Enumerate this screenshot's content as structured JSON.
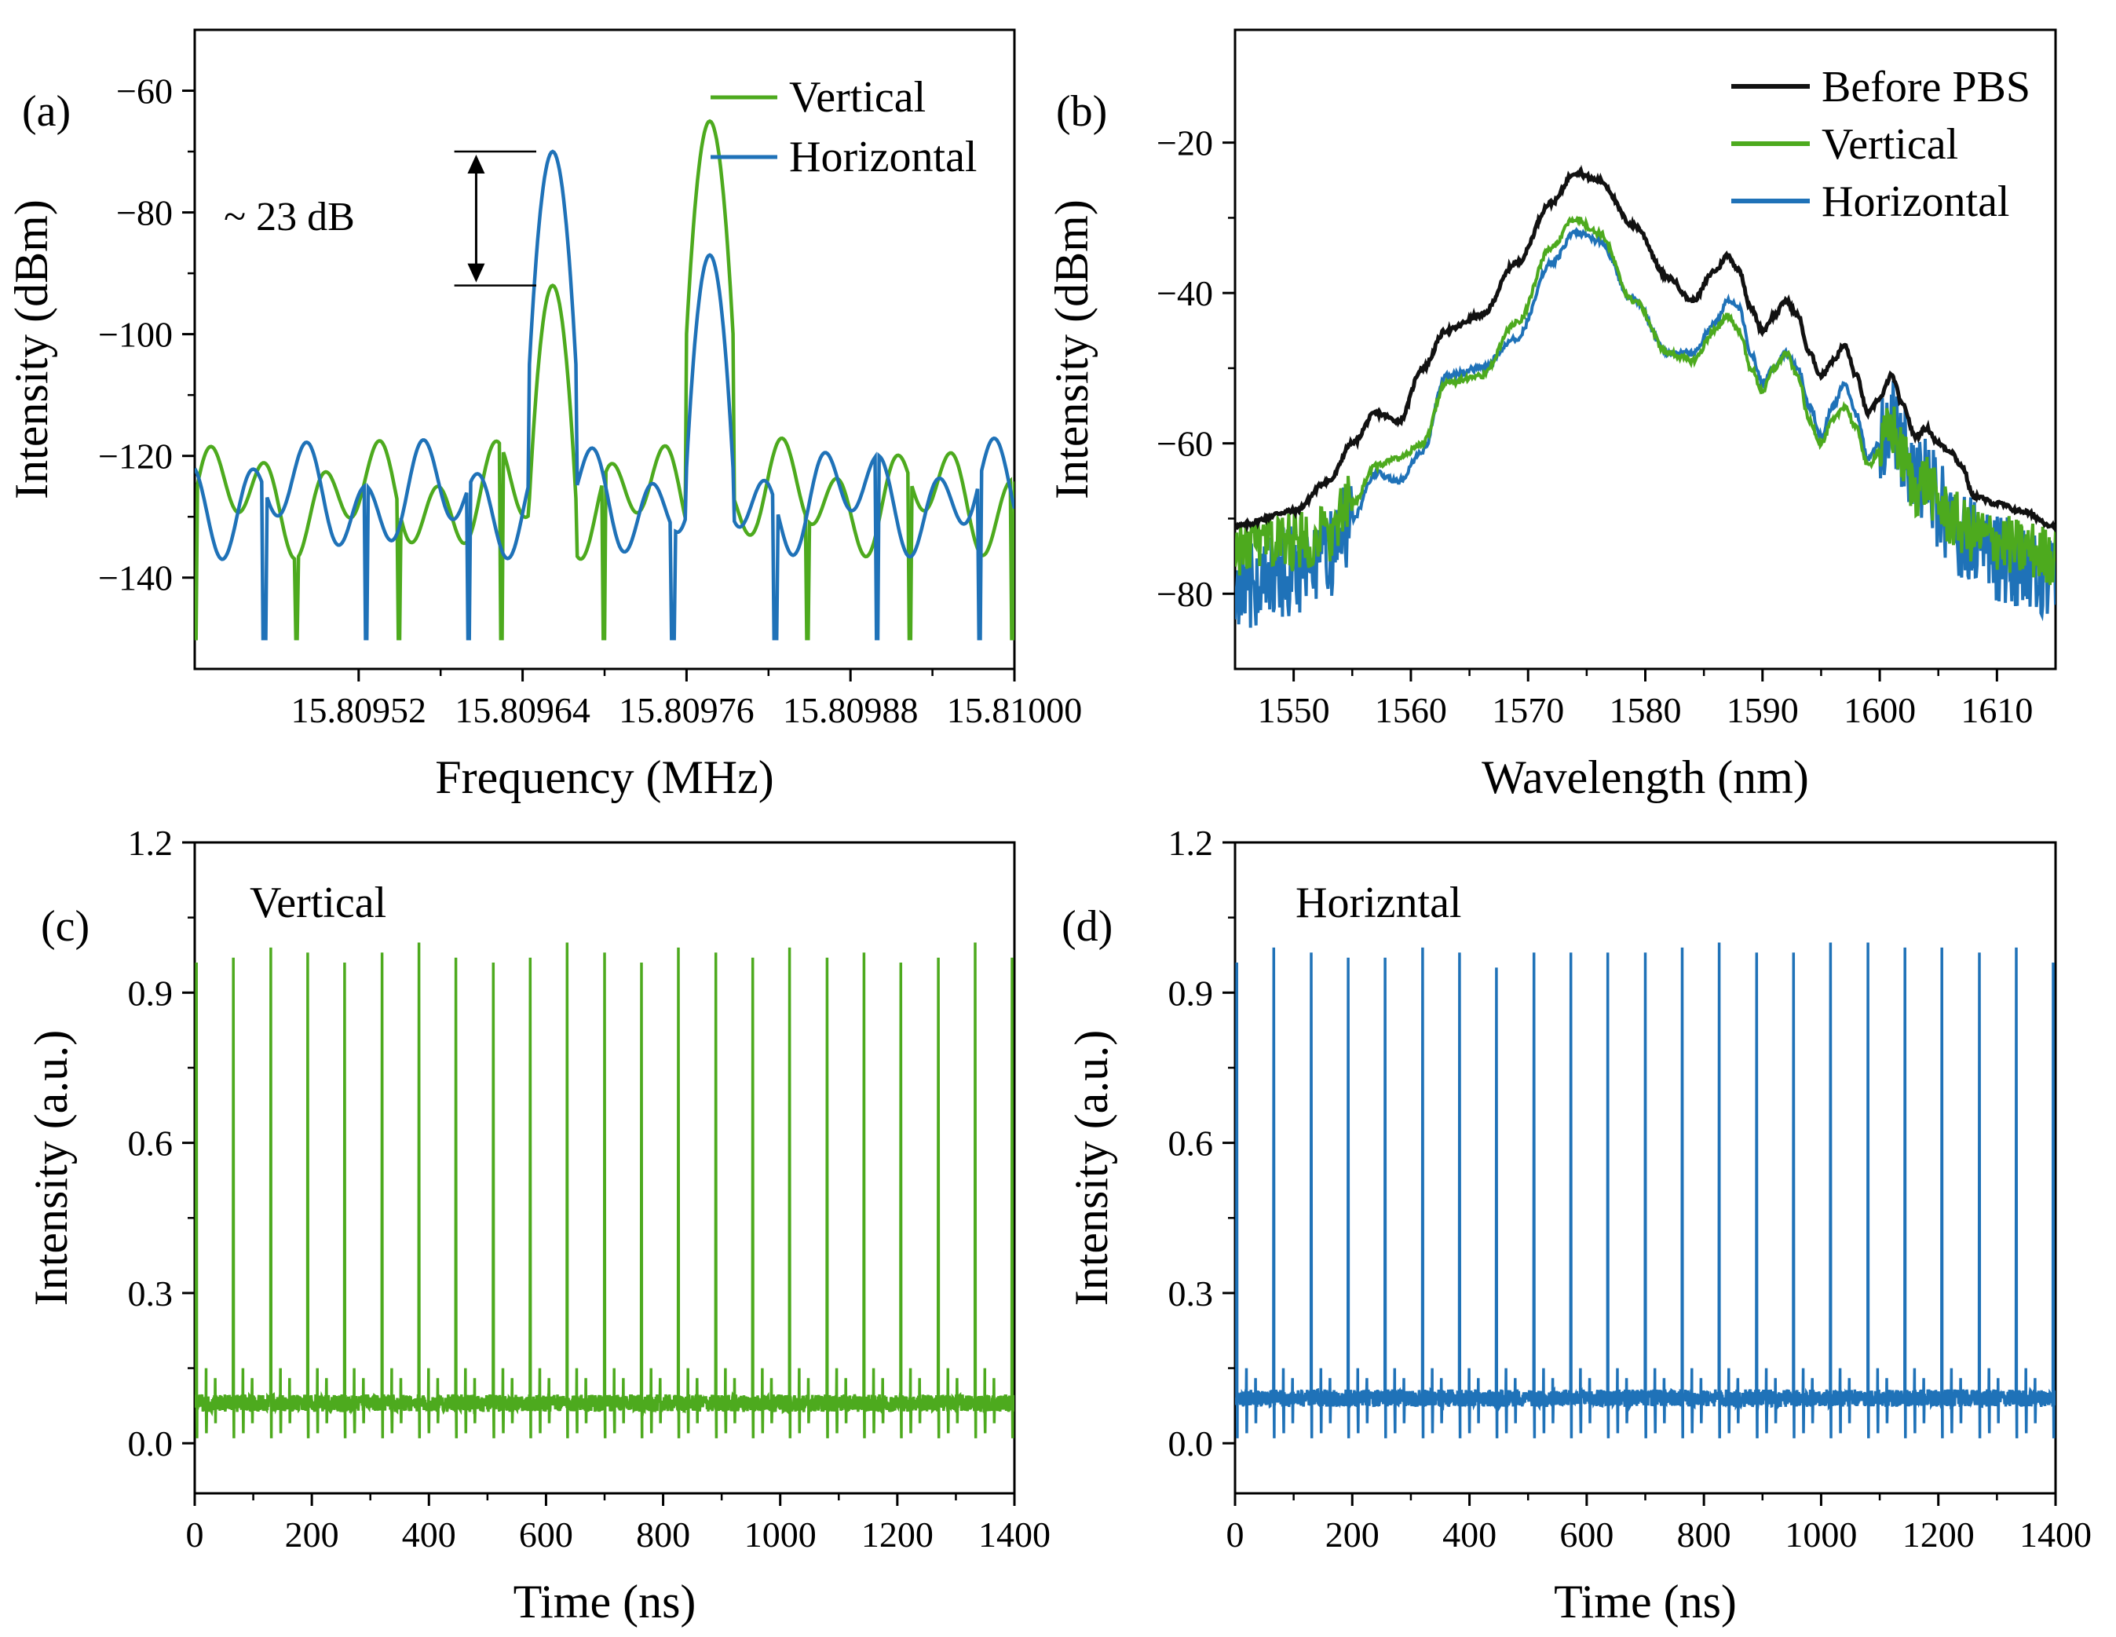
{
  "colors": {
    "vertical": "#4daa1e",
    "horizontal": "#1f72b8",
    "before_pbs": "#111111"
  },
  "chart_data": [
    {
      "panel": "(a)",
      "type": "line",
      "title": "",
      "xlabel": "Frequency (MHz)",
      "ylabel": "Intensity (dBm)",
      "xlim": [
        15.8094,
        15.81
      ],
      "ylim": [
        -155,
        -50
      ],
      "xticks": [
        15.80952,
        15.80964,
        15.80976,
        15.80988,
        15.81
      ],
      "xtick_labels": [
        "15.80952",
        "15.80964",
        "15.80976",
        "15.80988",
        "15.81000"
      ],
      "yticks": [
        -140,
        -120,
        -100,
        -80,
        -60
      ],
      "ytick_labels": [
        "−140",
        "−120",
        "−100",
        "−80",
        "−60"
      ],
      "legend": [
        "Vertical",
        "Horizontal"
      ],
      "legend_position": "top-right",
      "annotation": "~ 23 dB",
      "series": [
        {
          "name": "Vertical",
          "color_key": "vertical",
          "peaks": [
            {
              "x": 15.809662,
              "y": -92
            },
            {
              "x": 15.809777,
              "y": -65
            }
          ],
          "floor": -127
        },
        {
          "name": "Horizontal",
          "color_key": "horizontal",
          "peaks": [
            {
              "x": 15.809662,
              "y": -70
            },
            {
              "x": 15.809777,
              "y": -87
            }
          ],
          "floor": -127
        }
      ]
    },
    {
      "panel": "(b)",
      "type": "line",
      "title": "",
      "xlabel": "Wavelength (nm)",
      "ylabel": "Intensity (dBm)",
      "xlim": [
        1545,
        1615
      ],
      "ylim": [
        -90,
        -5
      ],
      "xticks": [
        1550,
        1560,
        1570,
        1580,
        1590,
        1600,
        1610
      ],
      "xtick_labels": [
        "1550",
        "1560",
        "1570",
        "1580",
        "1590",
        "1600",
        "1610"
      ],
      "yticks": [
        -80,
        -60,
        -40,
        -20
      ],
      "ytick_labels": [
        "−80",
        "−60",
        "−40",
        "−20"
      ],
      "legend": [
        "Before PBS",
        "Vertical",
        "Horizontal"
      ],
      "legend_position": "top-right",
      "series": [
        {
          "name": "Before PBS",
          "color_key": "before_pbs",
          "x": [
            1545,
            1550,
            1553,
            1555,
            1557,
            1559,
            1561,
            1563,
            1566,
            1569,
            1572,
            1574,
            1576,
            1579,
            1582,
            1584,
            1586,
            1587,
            1588,
            1589,
            1590,
            1591,
            1592,
            1593,
            1594,
            1595,
            1596,
            1597,
            1598,
            1599,
            1600,
            1601,
            1602,
            1603,
            1604,
            1605,
            1606,
            1607,
            1608,
            1610,
            1612,
            1615
          ],
          "y": [
            -71,
            -69,
            -65,
            -60,
            -56,
            -57,
            -50,
            -45,
            -43,
            -36,
            -28,
            -24,
            -25,
            -31,
            -38,
            -41,
            -37,
            -35,
            -37,
            -42,
            -45,
            -43,
            -41,
            -43,
            -48,
            -51,
            -49,
            -47,
            -51,
            -56,
            -54,
            -51,
            -55,
            -59,
            -58,
            -60,
            -61,
            -63,
            -67,
            -68,
            -69,
            -71
          ]
        },
        {
          "name": "Vertical",
          "color_key": "vertical",
          "x": [
            1545,
            1550,
            1553,
            1555,
            1557,
            1559,
            1561,
            1563,
            1566,
            1569,
            1572,
            1574,
            1576,
            1579,
            1582,
            1584,
            1586,
            1587,
            1588,
            1589,
            1590,
            1591,
            1592,
            1593,
            1594,
            1595,
            1596,
            1597,
            1598,
            1599,
            1600,
            1601,
            1602,
            1603,
            1604,
            1605,
            1606,
            1608,
            1610,
            1612,
            1615
          ],
          "y": [
            -74,
            -73,
            -72,
            -68,
            -63,
            -62,
            -60,
            -52,
            -51,
            -44,
            -34,
            -30,
            -32,
            -41,
            -48,
            -49,
            -45,
            -43,
            -45,
            -50,
            -53,
            -50,
            -48,
            -51,
            -57,
            -60,
            -57,
            -55,
            -58,
            -63,
            -61,
            -58,
            -62,
            -66,
            -65,
            -68,
            -70,
            -72,
            -73,
            -74,
            -75
          ]
        },
        {
          "name": "Horizontal",
          "color_key": "horizontal",
          "x": [
            1545,
            1550,
            1553,
            1555,
            1557,
            1559,
            1561,
            1563,
            1566,
            1569,
            1572,
            1574,
            1576,
            1579,
            1582,
            1584,
            1586,
            1587,
            1588,
            1589,
            1590,
            1591,
            1592,
            1593,
            1594,
            1595,
            1596,
            1597,
            1598,
            1599,
            1600,
            1601,
            1602,
            1603,
            1604,
            1605,
            1606,
            1608,
            1610,
            1612,
            1615
          ],
          "y": [
            -79,
            -77,
            -75,
            -70,
            -64,
            -65,
            -61,
            -51,
            -50,
            -46,
            -36,
            -32,
            -33,
            -41,
            -48,
            -48,
            -44,
            -41,
            -42,
            -48,
            -52,
            -50,
            -48,
            -50,
            -55,
            -59,
            -55,
            -52,
            -56,
            -62,
            -60,
            -57,
            -60,
            -65,
            -65,
            -68,
            -71,
            -73,
            -75,
            -77,
            -79
          ]
        }
      ]
    },
    {
      "panel": "(c)",
      "type": "line",
      "title": "Vertical",
      "xlabel": "Time (ns)",
      "ylabel": "Intensity (a.u.)",
      "xlim": [
        0,
        1400
      ],
      "ylim": [
        -0.1,
        1.2
      ],
      "xticks": [
        0,
        200,
        400,
        600,
        800,
        1000,
        1200,
        1400
      ],
      "xtick_labels": [
        "0",
        "200",
        "400",
        "600",
        "800",
        "1000",
        "1200",
        "1400"
      ],
      "yticks": [
        0.0,
        0.3,
        0.6,
        0.9,
        1.2
      ],
      "ytick_labels": [
        "0.0",
        "0.3",
        "0.6",
        "0.9",
        "1.2"
      ],
      "series": [
        {
          "name": "Vertical",
          "color_key": "vertical",
          "baseline": 0.08,
          "pulse_period_ns": 63.3,
          "pulse_times": [
            3,
            66,
            130,
            193,
            256,
            320,
            383,
            446,
            510,
            573,
            636,
            700,
            763,
            826,
            890,
            953,
            1016,
            1080,
            1143,
            1206,
            1270,
            1333,
            1396
          ],
          "pulse_peaks": [
            0.96,
            0.97,
            0.99,
            0.98,
            0.96,
            0.98,
            1.0,
            0.97,
            0.96,
            0.97,
            1.0,
            0.98,
            0.96,
            0.99,
            0.98,
            0.97,
            0.99,
            0.97,
            0.98,
            0.96,
            0.97,
            1.0,
            0.97
          ]
        }
      ]
    },
    {
      "panel": "(d)",
      "type": "line",
      "title": "Horizntal",
      "xlabel": "Time (ns)",
      "ylabel": "Intensity (a.u.)",
      "xlim": [
        0,
        1400
      ],
      "ylim": [
        -0.1,
        1.2
      ],
      "xticks": [
        0,
        200,
        400,
        600,
        800,
        1000,
        1200,
        1400
      ],
      "xtick_labels": [
        "0",
        "200",
        "400",
        "600",
        "800",
        "1000",
        "1200",
        "1400"
      ],
      "yticks": [
        0.0,
        0.3,
        0.6,
        0.9,
        1.2
      ],
      "ytick_labels": [
        "0.0",
        "0.3",
        "0.6",
        "0.9",
        "1.2"
      ],
      "series": [
        {
          "name": "Horizontal",
          "color_key": "horizontal",
          "baseline": 0.09,
          "pulse_period_ns": 63.3,
          "pulse_times": [
            3,
            66,
            130,
            193,
            256,
            320,
            383,
            446,
            510,
            573,
            636,
            700,
            763,
            826,
            890,
            953,
            1016,
            1080,
            1143,
            1206,
            1270,
            1333,
            1396
          ],
          "pulse_peaks": [
            0.96,
            0.99,
            0.98,
            0.97,
            0.97,
            0.99,
            0.98,
            0.95,
            0.98,
            0.98,
            0.98,
            0.98,
            0.99,
            1.0,
            0.98,
            0.98,
            1.0,
            1.0,
            0.99,
            0.99,
            0.98,
            0.99,
            0.96
          ]
        }
      ]
    }
  ]
}
